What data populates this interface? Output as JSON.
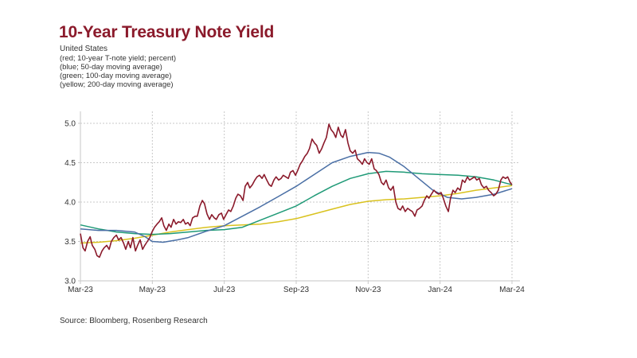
{
  "header": {
    "title": "10-Year Treasury Note Yield",
    "subtitle_lines": [
      "United States",
      "(red; 10-year T-note yield; percent)",
      "(blue; 50-day moving average)",
      "(green; 100-day moving average)",
      "(yellow; 200-day moving average)"
    ]
  },
  "footer": {
    "source": "Source: Bloomberg, Rosenberg Research"
  },
  "chart_data": {
    "type": "line",
    "title": "10-Year Treasury Note Yield",
    "xlabel": "",
    "ylabel": "",
    "x_unit": "months since Mar-23",
    "xlim": [
      0,
      12
    ],
    "ylim": [
      3.0,
      5.0
    ],
    "grid": true,
    "legend": "none (described in subtitle)",
    "x_ticks": [
      {
        "pos": 0,
        "label": "Mar-23"
      },
      {
        "pos": 2,
        "label": "May-23"
      },
      {
        "pos": 4,
        "label": "Jul-23"
      },
      {
        "pos": 6,
        "label": "Sep-23"
      },
      {
        "pos": 8,
        "label": "Nov-23"
      },
      {
        "pos": 10,
        "label": "Jan-24"
      },
      {
        "pos": 12,
        "label": "Mar-24"
      }
    ],
    "y_ticks": [
      {
        "pos": 3.0,
        "label": "3.0"
      },
      {
        "pos": 3.5,
        "label": "3.5"
      },
      {
        "pos": 4.0,
        "label": "4.0"
      },
      {
        "pos": 4.5,
        "label": "4.5"
      },
      {
        "pos": 5.0,
        "label": "5.0"
      }
    ],
    "series": [
      {
        "name": "10-year T-note yield",
        "color": "#8b1a2b",
        "points": [
          [
            0,
            3.6
          ],
          [
            0.07,
            3.42
          ],
          [
            0.13,
            3.38
          ],
          [
            0.2,
            3.5
          ],
          [
            0.27,
            3.56
          ],
          [
            0.33,
            3.45
          ],
          [
            0.4,
            3.4
          ],
          [
            0.46,
            3.32
          ],
          [
            0.53,
            3.3
          ],
          [
            0.6,
            3.38
          ],
          [
            0.66,
            3.42
          ],
          [
            0.73,
            3.45
          ],
          [
            0.8,
            3.4
          ],
          [
            0.86,
            3.5
          ],
          [
            0.93,
            3.55
          ],
          [
            1.0,
            3.58
          ],
          [
            1.06,
            3.52
          ],
          [
            1.13,
            3.55
          ],
          [
            1.2,
            3.48
          ],
          [
            1.26,
            3.4
          ],
          [
            1.33,
            3.5
          ],
          [
            1.39,
            3.42
          ],
          [
            1.46,
            3.55
          ],
          [
            1.53,
            3.38
          ],
          [
            1.59,
            3.45
          ],
          [
            1.66,
            3.52
          ],
          [
            1.73,
            3.4
          ],
          [
            1.79,
            3.45
          ],
          [
            1.86,
            3.5
          ],
          [
            1.93,
            3.55
          ],
          [
            1.99,
            3.62
          ],
          [
            2.06,
            3.68
          ],
          [
            2.13,
            3.72
          ],
          [
            2.19,
            3.75
          ],
          [
            2.26,
            3.8
          ],
          [
            2.32,
            3.7
          ],
          [
            2.39,
            3.64
          ],
          [
            2.46,
            3.72
          ],
          [
            2.52,
            3.68
          ],
          [
            2.59,
            3.78
          ],
          [
            2.66,
            3.72
          ],
          [
            2.72,
            3.75
          ],
          [
            2.79,
            3.74
          ],
          [
            2.86,
            3.78
          ],
          [
            2.92,
            3.72
          ],
          [
            2.99,
            3.74
          ],
          [
            3.05,
            3.7
          ],
          [
            3.12,
            3.8
          ],
          [
            3.19,
            3.82
          ],
          [
            3.25,
            3.82
          ],
          [
            3.32,
            3.95
          ],
          [
            3.39,
            4.02
          ],
          [
            3.45,
            3.98
          ],
          [
            3.52,
            3.85
          ],
          [
            3.59,
            3.78
          ],
          [
            3.65,
            3.84
          ],
          [
            3.72,
            3.8
          ],
          [
            3.78,
            3.78
          ],
          [
            3.85,
            3.84
          ],
          [
            3.92,
            3.86
          ],
          [
            3.98,
            3.78
          ],
          [
            4.05,
            3.84
          ],
          [
            4.12,
            3.9
          ],
          [
            4.18,
            3.88
          ],
          [
            4.25,
            3.95
          ],
          [
            4.32,
            4.05
          ],
          [
            4.38,
            4.1
          ],
          [
            4.45,
            4.08
          ],
          [
            4.52,
            4.02
          ],
          [
            4.58,
            4.2
          ],
          [
            4.65,
            4.25
          ],
          [
            4.71,
            4.18
          ],
          [
            4.78,
            4.22
          ],
          [
            4.85,
            4.28
          ],
          [
            4.91,
            4.32
          ],
          [
            4.98,
            4.34
          ],
          [
            5.05,
            4.3
          ],
          [
            5.11,
            4.35
          ],
          [
            5.18,
            4.28
          ],
          [
            5.25,
            4.22
          ],
          [
            5.31,
            4.2
          ],
          [
            5.38,
            4.28
          ],
          [
            5.44,
            4.32
          ],
          [
            5.51,
            4.28
          ],
          [
            5.58,
            4.3
          ],
          [
            5.64,
            4.34
          ],
          [
            5.71,
            4.32
          ],
          [
            5.78,
            4.3
          ],
          [
            5.84,
            4.38
          ],
          [
            5.91,
            4.4
          ],
          [
            5.98,
            4.34
          ],
          [
            6.04,
            4.4
          ],
          [
            6.11,
            4.48
          ],
          [
            6.17,
            4.52
          ],
          [
            6.24,
            4.58
          ],
          [
            6.31,
            4.62
          ],
          [
            6.37,
            4.68
          ],
          [
            6.44,
            4.8
          ],
          [
            6.51,
            4.75
          ],
          [
            6.57,
            4.72
          ],
          [
            6.64,
            4.62
          ],
          [
            6.71,
            4.68
          ],
          [
            6.77,
            4.75
          ],
          [
            6.84,
            4.82
          ],
          [
            6.91,
            4.99
          ],
          [
            6.97,
            4.92
          ],
          [
            7.04,
            4.88
          ],
          [
            7.1,
            4.82
          ],
          [
            7.17,
            4.95
          ],
          [
            7.24,
            4.85
          ],
          [
            7.3,
            4.82
          ],
          [
            7.37,
            4.92
          ],
          [
            7.44,
            4.75
          ],
          [
            7.5,
            4.65
          ],
          [
            7.57,
            4.62
          ],
          [
            7.64,
            4.66
          ],
          [
            7.7,
            4.55
          ],
          [
            7.77,
            4.52
          ],
          [
            7.84,
            4.48
          ],
          [
            7.9,
            4.55
          ],
          [
            7.97,
            4.5
          ],
          [
            8.03,
            4.48
          ],
          [
            8.1,
            4.55
          ],
          [
            8.17,
            4.42
          ],
          [
            8.23,
            4.4
          ],
          [
            8.3,
            4.35
          ],
          [
            8.37,
            4.25
          ],
          [
            8.43,
            4.22
          ],
          [
            8.5,
            4.28
          ],
          [
            8.57,
            4.18
          ],
          [
            8.63,
            4.15
          ],
          [
            8.7,
            4.2
          ],
          [
            8.77,
            4.0
          ],
          [
            8.83,
            3.92
          ],
          [
            8.9,
            3.9
          ],
          [
            8.96,
            3.95
          ],
          [
            9.03,
            3.88
          ],
          [
            9.1,
            3.92
          ],
          [
            9.16,
            3.9
          ],
          [
            9.23,
            3.88
          ],
          [
            9.3,
            3.82
          ],
          [
            9.36,
            3.9
          ],
          [
            9.43,
            3.92
          ],
          [
            9.5,
            3.95
          ],
          [
            9.56,
            4.02
          ],
          [
            9.63,
            4.08
          ],
          [
            9.69,
            4.05
          ],
          [
            9.76,
            4.1
          ],
          [
            9.83,
            4.15
          ],
          [
            9.89,
            4.12
          ],
          [
            9.96,
            4.1
          ],
          [
            10.03,
            4.12
          ],
          [
            10.09,
            4.05
          ],
          [
            10.16,
            3.95
          ],
          [
            10.23,
            3.88
          ],
          [
            10.29,
            4.05
          ],
          [
            10.36,
            4.15
          ],
          [
            10.42,
            4.12
          ],
          [
            10.49,
            4.18
          ],
          [
            10.56,
            4.15
          ],
          [
            10.62,
            4.28
          ],
          [
            10.69,
            4.25
          ],
          [
            10.76,
            4.32
          ],
          [
            10.82,
            4.28
          ],
          [
            10.89,
            4.3
          ],
          [
            10.96,
            4.32
          ],
          [
            11.02,
            4.28
          ],
          [
            11.09,
            4.3
          ],
          [
            11.15,
            4.22
          ],
          [
            11.22,
            4.18
          ],
          [
            11.29,
            4.2
          ],
          [
            11.35,
            4.15
          ],
          [
            11.42,
            4.12
          ],
          [
            11.49,
            4.08
          ],
          [
            11.55,
            4.1
          ],
          [
            11.62,
            4.15
          ],
          [
            11.69,
            4.28
          ],
          [
            11.75,
            4.32
          ],
          [
            11.82,
            4.3
          ],
          [
            11.88,
            4.32
          ],
          [
            11.95,
            4.25
          ],
          [
            12.0,
            4.22
          ]
        ]
      },
      {
        "name": "50-day moving average",
        "color": "#4a6fa5",
        "points": [
          [
            0,
            3.66
          ],
          [
            0.5,
            3.64
          ],
          [
            1.0,
            3.64
          ],
          [
            1.5,
            3.62
          ],
          [
            1.8,
            3.56
          ],
          [
            2.0,
            3.5
          ],
          [
            2.3,
            3.49
          ],
          [
            2.7,
            3.52
          ],
          [
            3.0,
            3.55
          ],
          [
            3.5,
            3.63
          ],
          [
            4.0,
            3.7
          ],
          [
            4.5,
            3.82
          ],
          [
            5.0,
            3.94
          ],
          [
            5.5,
            4.07
          ],
          [
            6.0,
            4.2
          ],
          [
            6.5,
            4.35
          ],
          [
            7.0,
            4.5
          ],
          [
            7.5,
            4.58
          ],
          [
            8.0,
            4.63
          ],
          [
            8.3,
            4.62
          ],
          [
            8.6,
            4.57
          ],
          [
            9.0,
            4.45
          ],
          [
            9.4,
            4.3
          ],
          [
            9.8,
            4.15
          ],
          [
            10.2,
            4.06
          ],
          [
            10.6,
            4.04
          ],
          [
            11.0,
            4.06
          ],
          [
            11.5,
            4.1
          ],
          [
            12.0,
            4.17
          ]
        ]
      },
      {
        "name": "100-day moving average",
        "color": "#1f9a77",
        "points": [
          [
            0,
            3.71
          ],
          [
            0.5,
            3.66
          ],
          [
            1.0,
            3.62
          ],
          [
            1.5,
            3.6
          ],
          [
            2.0,
            3.59
          ],
          [
            2.5,
            3.6
          ],
          [
            3.0,
            3.62
          ],
          [
            3.5,
            3.64
          ],
          [
            4.0,
            3.65
          ],
          [
            4.5,
            3.68
          ],
          [
            5.0,
            3.77
          ],
          [
            5.5,
            3.86
          ],
          [
            6.0,
            3.95
          ],
          [
            6.5,
            4.08
          ],
          [
            7.0,
            4.2
          ],
          [
            7.5,
            4.3
          ],
          [
            8.0,
            4.36
          ],
          [
            8.5,
            4.39
          ],
          [
            9.0,
            4.38
          ],
          [
            9.5,
            4.36
          ],
          [
            10.0,
            4.35
          ],
          [
            10.5,
            4.34
          ],
          [
            11.0,
            4.32
          ],
          [
            11.5,
            4.28
          ],
          [
            12.0,
            4.22
          ]
        ]
      },
      {
        "name": "200-day moving average",
        "color": "#d9c21e",
        "points": [
          [
            0,
            3.48
          ],
          [
            0.5,
            3.49
          ],
          [
            1.0,
            3.51
          ],
          [
            1.5,
            3.54
          ],
          [
            2.0,
            3.58
          ],
          [
            2.5,
            3.62
          ],
          [
            3.0,
            3.65
          ],
          [
            3.5,
            3.68
          ],
          [
            4.0,
            3.7
          ],
          [
            4.5,
            3.71
          ],
          [
            5.0,
            3.72
          ],
          [
            5.5,
            3.75
          ],
          [
            6.0,
            3.79
          ],
          [
            6.5,
            3.85
          ],
          [
            7.0,
            3.91
          ],
          [
            7.5,
            3.97
          ],
          [
            8.0,
            4.01
          ],
          [
            8.5,
            4.03
          ],
          [
            9.0,
            4.04
          ],
          [
            9.5,
            4.06
          ],
          [
            10.0,
            4.08
          ],
          [
            10.5,
            4.11
          ],
          [
            11.0,
            4.15
          ],
          [
            11.5,
            4.18
          ],
          [
            12.0,
            4.21
          ]
        ]
      }
    ]
  }
}
